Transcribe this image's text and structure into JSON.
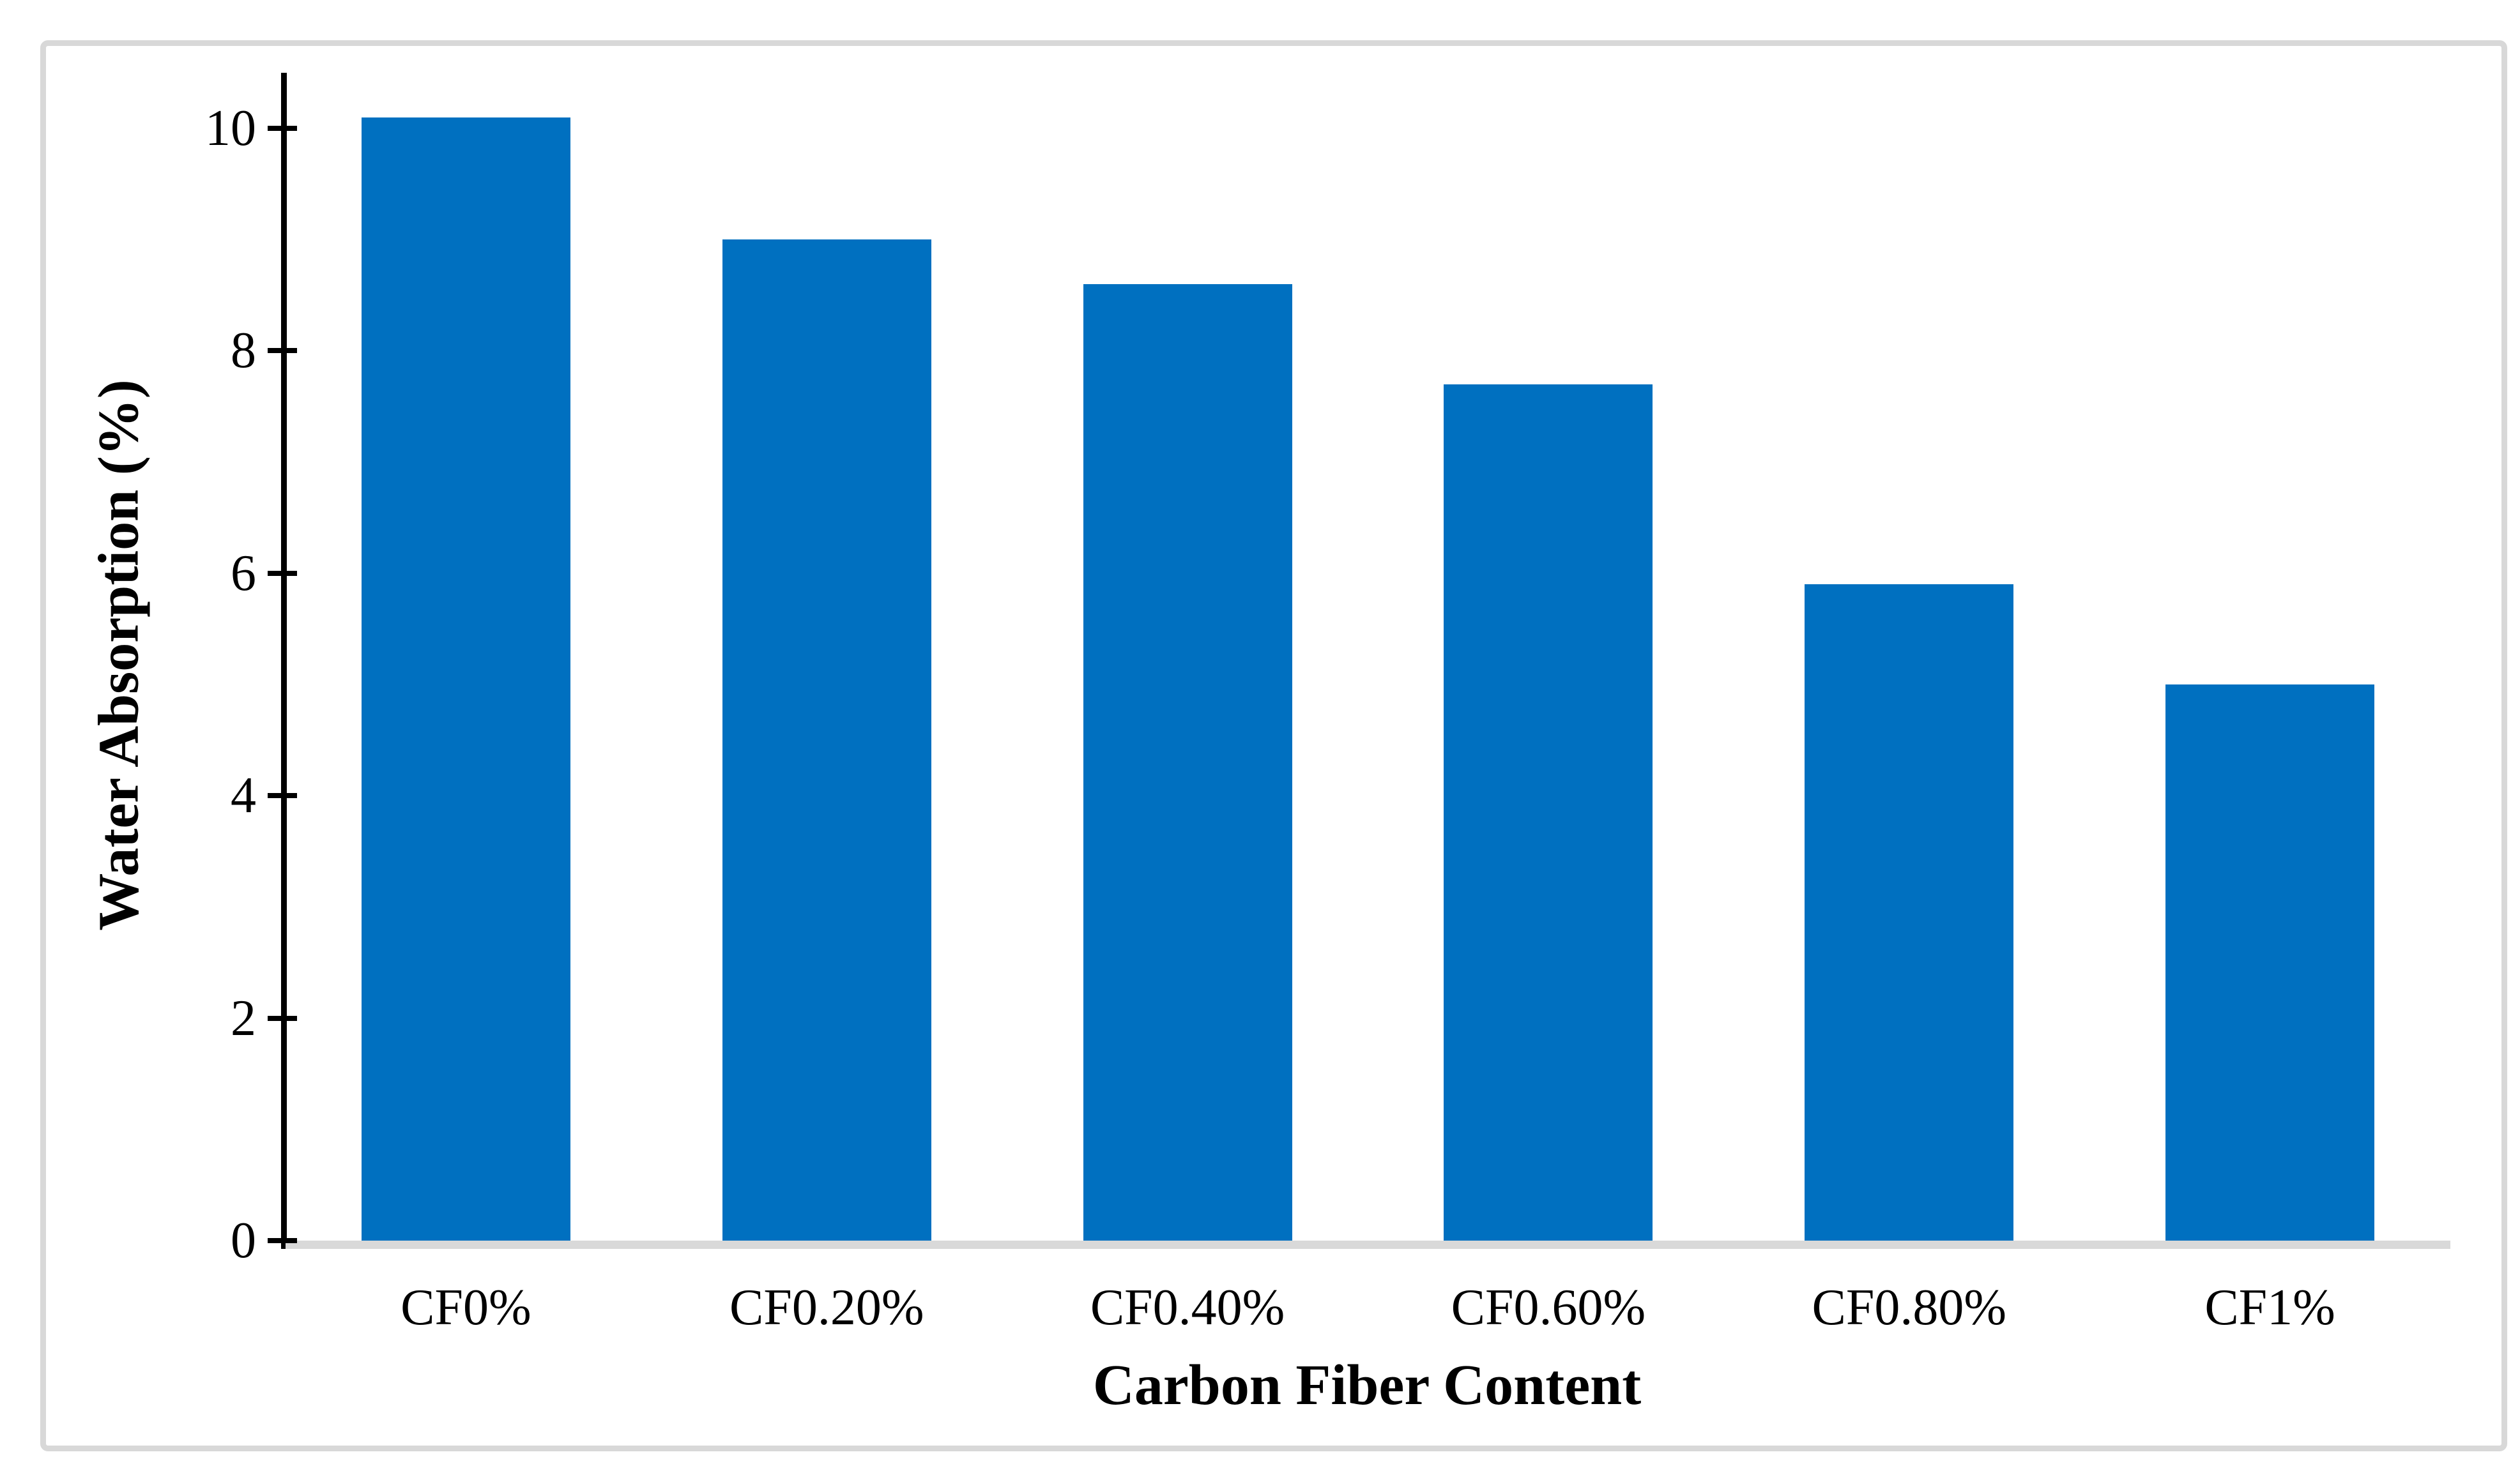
{
  "chart_data": {
    "type": "bar",
    "title": "",
    "categories": [
      "CF0%",
      "CF0.20%",
      "CF0.40%",
      "CF0.60%",
      "CF0.80%",
      "CF1%"
    ],
    "values": [
      10.1,
      9.0,
      8.6,
      7.7,
      5.9,
      5.0
    ],
    "series_name": "Water Absorption",
    "xlabel": "Carbon Fiber Content",
    "ylabel": "Water Absorption (%)",
    "ylim": [
      0,
      10.5
    ],
    "yticks": [
      0,
      2,
      4,
      6,
      8,
      10
    ],
    "grid": false,
    "legend": "none",
    "colors": {
      "bar": "#0070C0",
      "axis": "#000000",
      "baseline": "#d9d9d9",
      "frame_border": "#d8d8d8",
      "background": "#ffffff",
      "text": "#000000"
    }
  }
}
